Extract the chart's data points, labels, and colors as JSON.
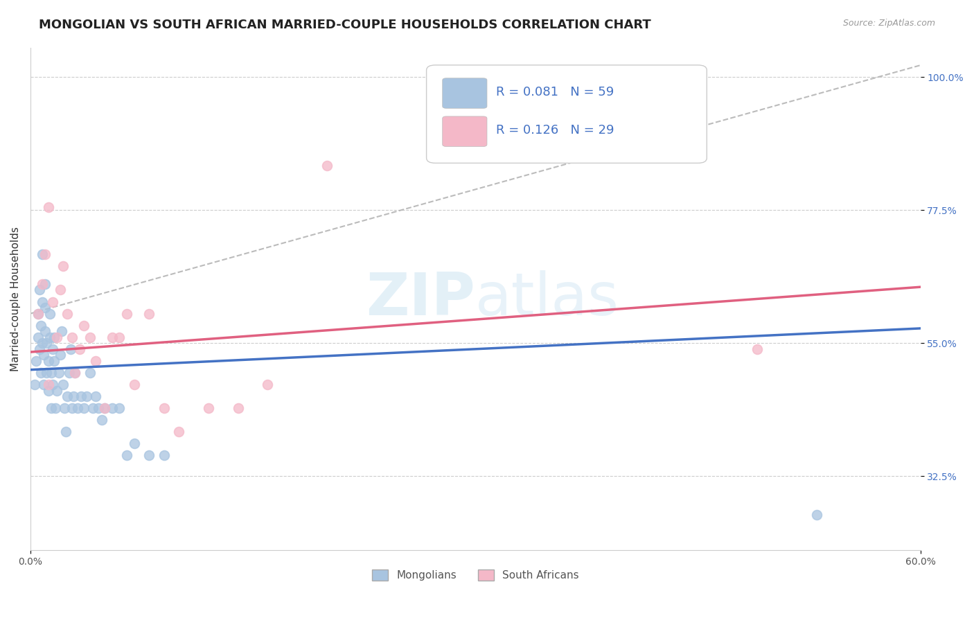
{
  "title": "MONGOLIAN VS SOUTH AFRICAN MARRIED-COUPLE HOUSEHOLDS CORRELATION CHART",
  "source": "Source: ZipAtlas.com",
  "ylabel": "Married-couple Households",
  "xlim": [
    0.0,
    0.6
  ],
  "ylim": [
    0.2,
    1.05
  ],
  "yticks": [
    0.325,
    0.55,
    0.775,
    1.0
  ],
  "ytick_labels": [
    "32.5%",
    "55.0%",
    "77.5%",
    "100.0%"
  ],
  "xticks": [
    0.0,
    0.6
  ],
  "xtick_labels": [
    "0.0%",
    "60.0%"
  ],
  "mongolian_color": "#a8c4e0",
  "south_african_color": "#f4b8c8",
  "mongolian_line_color": "#4472c4",
  "south_african_line_color": "#e06080",
  "trend_line_color": "#b0b0b0",
  "background_color": "#ffffff",
  "grid_color": "#cccccc",
  "legend_color": "#4472c4",
  "mongolians_R": 0.081,
  "mongolians_N": 59,
  "south_africans_R": 0.126,
  "south_africans_N": 29,
  "mong_x": [
    0.003,
    0.004,
    0.005,
    0.005,
    0.006,
    0.006,
    0.007,
    0.007,
    0.008,
    0.008,
    0.008,
    0.009,
    0.009,
    0.01,
    0.01,
    0.01,
    0.011,
    0.011,
    0.012,
    0.012,
    0.013,
    0.013,
    0.014,
    0.014,
    0.015,
    0.015,
    0.016,
    0.016,
    0.017,
    0.018,
    0.019,
    0.02,
    0.021,
    0.022,
    0.023,
    0.024,
    0.025,
    0.026,
    0.027,
    0.028,
    0.029,
    0.03,
    0.032,
    0.034,
    0.036,
    0.038,
    0.04,
    0.042,
    0.044,
    0.046,
    0.048,
    0.05,
    0.055,
    0.06,
    0.065,
    0.07,
    0.08,
    0.09,
    0.53
  ],
  "mong_y": [
    0.48,
    0.52,
    0.56,
    0.6,
    0.54,
    0.64,
    0.58,
    0.5,
    0.55,
    0.62,
    0.7,
    0.48,
    0.53,
    0.57,
    0.61,
    0.65,
    0.5,
    0.55,
    0.47,
    0.52,
    0.56,
    0.6,
    0.44,
    0.5,
    0.54,
    0.48,
    0.52,
    0.56,
    0.44,
    0.47,
    0.5,
    0.53,
    0.57,
    0.48,
    0.44,
    0.4,
    0.46,
    0.5,
    0.54,
    0.44,
    0.46,
    0.5,
    0.44,
    0.46,
    0.44,
    0.46,
    0.5,
    0.44,
    0.46,
    0.44,
    0.42,
    0.44,
    0.44,
    0.44,
    0.36,
    0.38,
    0.36,
    0.36,
    0.26
  ],
  "sa_x": [
    0.005,
    0.008,
    0.01,
    0.012,
    0.015,
    0.018,
    0.02,
    0.022,
    0.025,
    0.028,
    0.03,
    0.033,
    0.036,
    0.04,
    0.044,
    0.05,
    0.055,
    0.06,
    0.065,
    0.07,
    0.08,
    0.09,
    0.1,
    0.12,
    0.14,
    0.16,
    0.2,
    0.49,
    0.012
  ],
  "sa_y": [
    0.6,
    0.65,
    0.7,
    0.78,
    0.62,
    0.56,
    0.64,
    0.68,
    0.6,
    0.56,
    0.5,
    0.54,
    0.58,
    0.56,
    0.52,
    0.44,
    0.56,
    0.56,
    0.6,
    0.48,
    0.6,
    0.44,
    0.4,
    0.44,
    0.44,
    0.48,
    0.85,
    0.54,
    0.48
  ],
  "mong_line_x": [
    0.0,
    0.6
  ],
  "mong_line_y": [
    0.505,
    0.575
  ],
  "sa_line_x": [
    0.0,
    0.6
  ],
  "sa_line_y": [
    0.535,
    0.645
  ],
  "trend_line_x": [
    0.0,
    0.6
  ],
  "trend_line_y": [
    0.6,
    1.02
  ],
  "watermark_zip": "ZIP",
  "watermark_atlas": "atlas",
  "title_fontsize": 13,
  "axis_label_fontsize": 11,
  "tick_fontsize": 10,
  "legend_fontsize": 13,
  "marker_size": 100
}
